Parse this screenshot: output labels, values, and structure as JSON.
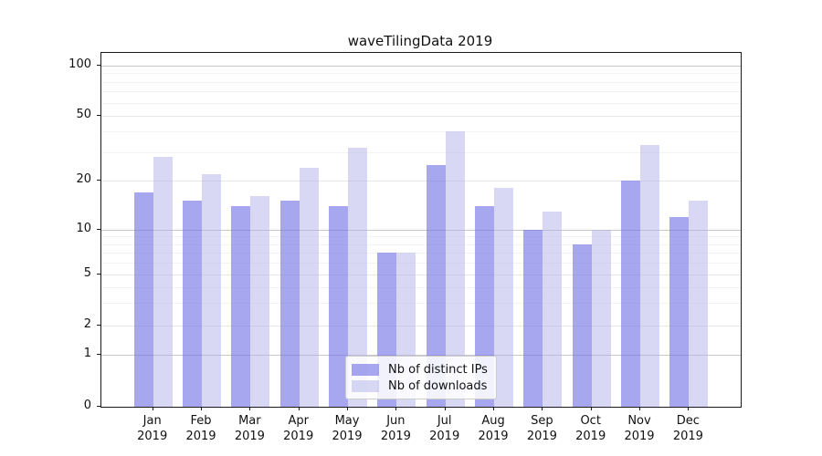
{
  "title": "waveTilingData 2019",
  "colors": {
    "distinct_ips_bar": "rgba(113,113,229,0.62)",
    "downloads_bar": "rgba(173,173,235,0.48)",
    "distinct_ips_hex_on_white": "#a8a8ee",
    "downloads_hex_on_white": "#d8d8f6",
    "grid_decade": "#c7c7c7",
    "grid_submajor": "#e6e6e6",
    "grid_minor": "#f3f3f3",
    "axis_spine": "#1a1a1a",
    "text": "#111111",
    "background": "#ffffff"
  },
  "legend": {
    "position": "lower center",
    "items": [
      {
        "label": "Nb of distinct IPs"
      },
      {
        "label": "Nb of downloads"
      }
    ]
  },
  "x_axis": {
    "months": [
      "Jan",
      "Feb",
      "Mar",
      "Apr",
      "May",
      "Jun",
      "Jul",
      "Aug",
      "Sep",
      "Oct",
      "Nov",
      "Dec"
    ],
    "year": "2019"
  },
  "y_axis": {
    "scale": "asinh-log",
    "tick_labels": [
      "100",
      "50",
      "20",
      "10",
      "5",
      "2",
      "1",
      "0"
    ],
    "decade_gridlines": [
      1,
      10,
      100
    ],
    "submajor_gridlines": [
      2,
      5,
      20,
      50
    ],
    "minor_gridlines": [
      3,
      4,
      6,
      7,
      8,
      9,
      30,
      40,
      60,
      70,
      80,
      90
    ]
  },
  "chart_data": {
    "type": "bar",
    "title": "waveTilingData 2019",
    "categories": [
      "Jan 2019",
      "Feb 2019",
      "Mar 2019",
      "Apr 2019",
      "May 2019",
      "Jun 2019",
      "Jul 2019",
      "Aug 2019",
      "Sep 2019",
      "Oct 2019",
      "Nov 2019",
      "Dec 2019"
    ],
    "series": [
      {
        "name": "Nb of distinct IPs",
        "color": "rgba(113,113,229,0.62)",
        "values": [
          17,
          15,
          14,
          15,
          14,
          7,
          25,
          14,
          10,
          8,
          20,
          12
        ]
      },
      {
        "name": "Nb of downloads",
        "color": "rgba(173,173,235,0.48)",
        "values": [
          28,
          22,
          16,
          24,
          32,
          7,
          40,
          18,
          13,
          10,
          33,
          15
        ]
      }
    ],
    "xlabel": "",
    "ylabel": "",
    "ylim": [
      0,
      120
    ],
    "y_ticks": [
      0,
      1,
      2,
      5,
      10,
      20,
      50,
      100
    ],
    "grid": true,
    "legend_position": "lower center"
  }
}
